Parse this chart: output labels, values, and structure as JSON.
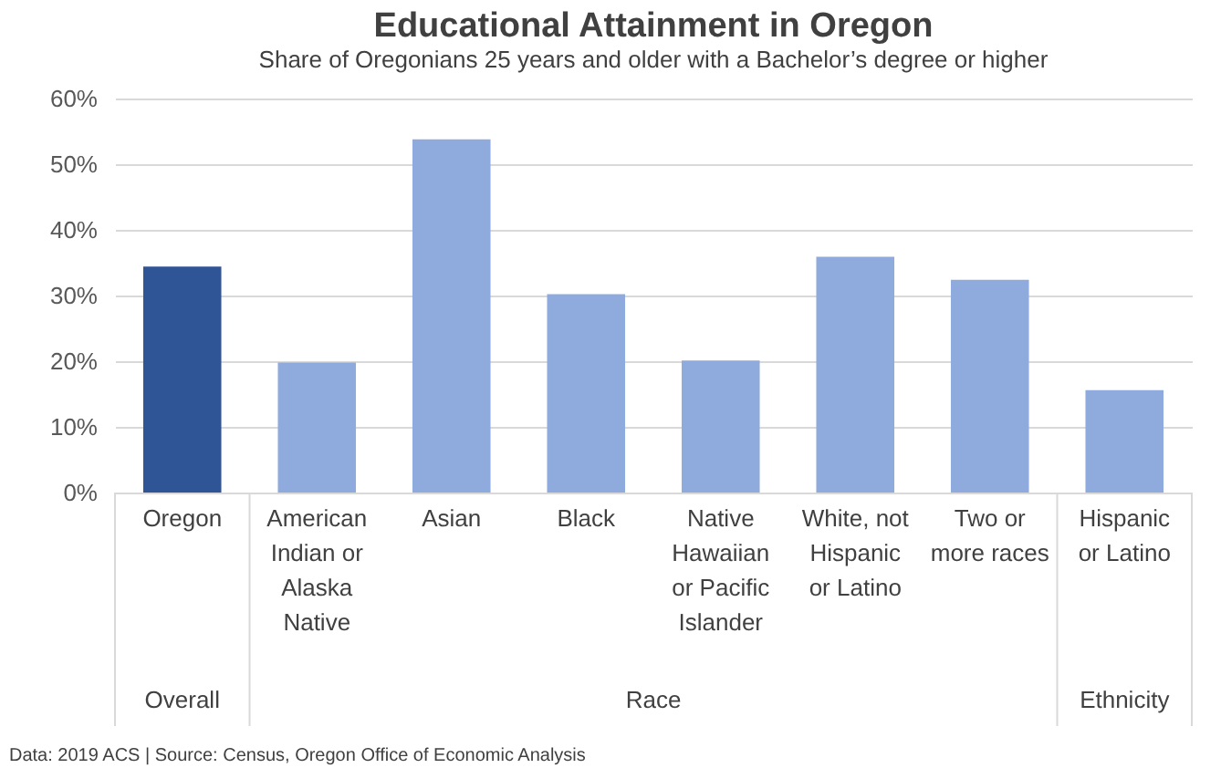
{
  "chart_data": {
    "type": "bar",
    "title": "Educational Attainment in Oregon",
    "subtitle": "Share of Oregonians 25 years and older with a Bachelor’s degree or higher",
    "categories": [
      "Oregon",
      "American Indian or Alaska Native",
      "Asian",
      "Black",
      "Native Hawaiian or Pacific Islander",
      "White, not Hispanic or Latino",
      "Two or more races",
      "Hispanic or Latino"
    ],
    "values": [
      34.4,
      19.8,
      53.8,
      30.2,
      20.1,
      35.9,
      32.4,
      15.6
    ],
    "colors": [
      "#2f5597",
      "#8faadc",
      "#8faadc",
      "#8faadc",
      "#8faadc",
      "#8faadc",
      "#8faadc",
      "#8faadc"
    ],
    "ylim": [
      0,
      60
    ],
    "yticks": [
      {
        "value": 0,
        "label": "0%"
      },
      {
        "value": 10,
        "label": "10%"
      },
      {
        "value": 20,
        "label": "20%"
      },
      {
        "value": 30,
        "label": "30%"
      },
      {
        "value": 40,
        "label": "40%"
      },
      {
        "value": 50,
        "label": "50%"
      },
      {
        "value": 60,
        "label": "60%"
      }
    ],
    "grid": "y",
    "annotations": [
      "Overall",
      "Race",
      "Ethnicity",
      "Data: 2019 ACS  |  Source: Census, Oregon Office of Economic Analysis"
    ]
  }
}
